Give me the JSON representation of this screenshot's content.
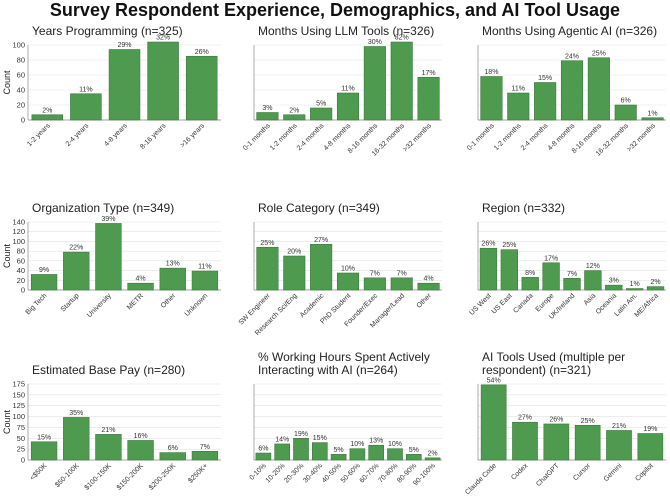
{
  "title": "Survey Respondent Experience, Demographics, and AI Tool Usage",
  "chart_data": [
    {
      "type": "bar",
      "title": "Years Programming (n=325)",
      "ylabel": "Count",
      "ylim": [
        0,
        100
      ],
      "yticks": [
        0,
        20,
        40,
        60,
        80,
        100
      ],
      "categories": [
        "1-2 years",
        "2-4 years",
        "4-8 years",
        "8-16 years",
        ">16 years"
      ],
      "values": [
        7,
        35,
        94,
        104,
        85
      ],
      "labels": [
        "2%",
        "11%",
        "29%",
        "32%",
        "26%"
      ]
    },
    {
      "type": "bar",
      "title": "Months Using LLM Tools (n=326)",
      "ylabel": "",
      "ylim": [
        0,
        100
      ],
      "yticks": [],
      "categories": [
        "0-1 months",
        "1-2 months",
        "2-4 months",
        "4-8 months",
        "8-16 months",
        "16-32 months",
        ">32 months"
      ],
      "values": [
        10,
        7,
        16,
        36,
        98,
        104,
        57
      ],
      "labels": [
        "3%",
        "2%",
        "5%",
        "11%",
        "30%",
        "32%",
        "17%"
      ]
    },
    {
      "type": "bar",
      "title": "Months Using Agentic AI (n=326)",
      "ylabel": "",
      "ylim": [
        0,
        100
      ],
      "yticks": [],
      "categories": [
        "0-1 months",
        "1-2 months",
        "2-4 months",
        "4-8 months",
        "8-16 months",
        "16-32 months",
        ">32 months"
      ],
      "values": [
        58,
        36,
        50,
        79,
        83,
        20,
        3
      ],
      "labels": [
        "18%",
        "11%",
        "15%",
        "24%",
        "25%",
        "6%",
        "1%"
      ]
    },
    {
      "type": "bar",
      "title": "Organization Type (n=349)",
      "ylabel": "Count",
      "ylim": [
        0,
        140
      ],
      "yticks": [
        0,
        20,
        40,
        60,
        80,
        100,
        120,
        140
      ],
      "categories": [
        "Big Tech",
        "Startup",
        "University",
        "METR",
        "Other",
        "Unknown"
      ],
      "values": [
        32,
        78,
        137,
        14,
        45,
        39
      ],
      "labels": [
        "9%",
        "22%",
        "39%",
        "4%",
        "13%",
        "11%"
      ]
    },
    {
      "type": "bar",
      "title": "Role Category (n=349)",
      "ylabel": "",
      "ylim": [
        0,
        140
      ],
      "yticks": [],
      "categories": [
        "SW Engineer",
        "Research Sci/Eng",
        "Academic",
        "PhD Student",
        "Founder/Exec",
        "Manager/Lead",
        "Other"
      ],
      "values": [
        88,
        70,
        94,
        35,
        25,
        25,
        14
      ],
      "labels": [
        "25%",
        "20%",
        "27%",
        "10%",
        "7%",
        "7%",
        "4%"
      ]
    },
    {
      "type": "bar",
      "title": "Region (n=332)",
      "ylabel": "",
      "ylim": [
        0,
        140
      ],
      "yticks": [],
      "categories": [
        "US West",
        "US East",
        "Canada",
        "Europe",
        "UK/Ireland",
        "Asia",
        "Oceania",
        "Latin Am.",
        "ME/Africa"
      ],
      "values": [
        86,
        83,
        26,
        56,
        24,
        40,
        10,
        3,
        7
      ],
      "labels": [
        "26%",
        "25%",
        "8%",
        "17%",
        "7%",
        "12%",
        "3%",
        "1%",
        "2%"
      ]
    },
    {
      "type": "bar",
      "title": "Estimated Base Pay (n=280)",
      "ylabel": "Count",
      "ylim": [
        0,
        175
      ],
      "yticks": [
        0,
        25,
        50,
        75,
        100,
        125,
        150,
        175
      ],
      "categories": [
        "<$50K",
        "$50-100K",
        "$100-150K",
        "$150-200K",
        "$200-250K",
        "$250K+"
      ],
      "values": [
        42,
        98,
        59,
        45,
        17,
        20
      ],
      "labels": [
        "15%",
        "35%",
        "21%",
        "16%",
        "6%",
        "7%"
      ]
    },
    {
      "type": "bar",
      "title": "% Working Hours Spent Actively Interacting with AI (n=264)",
      "ylabel": "",
      "ylim": [
        0,
        175
      ],
      "yticks": [],
      "categories": [
        "0-10%",
        "10-20%",
        "20-30%",
        "30-40%",
        "40-50%",
        "50-60%",
        "60-70%",
        "70-80%",
        "80-90%",
        "90-100%"
      ],
      "values": [
        16,
        37,
        50,
        40,
        13,
        26,
        34,
        26,
        13,
        5
      ],
      "labels": [
        "6%",
        "14%",
        "19%",
        "15%",
        "5%",
        "10%",
        "13%",
        "10%",
        "5%",
        "2%"
      ]
    },
    {
      "type": "bar",
      "title": "AI Tools Used (multiple per respondent) (n=321)",
      "ylabel": "",
      "ylim": [
        0,
        175
      ],
      "yticks": [],
      "categories": [
        "Claude Code",
        "Codex",
        "ChatGPT",
        "Cursor",
        "Gemini",
        "Copilot"
      ],
      "values": [
        173,
        87,
        83,
        80,
        68,
        61
      ],
      "labels": [
        "54%",
        "27%",
        "26%",
        "25%",
        "21%",
        "19%"
      ]
    }
  ]
}
